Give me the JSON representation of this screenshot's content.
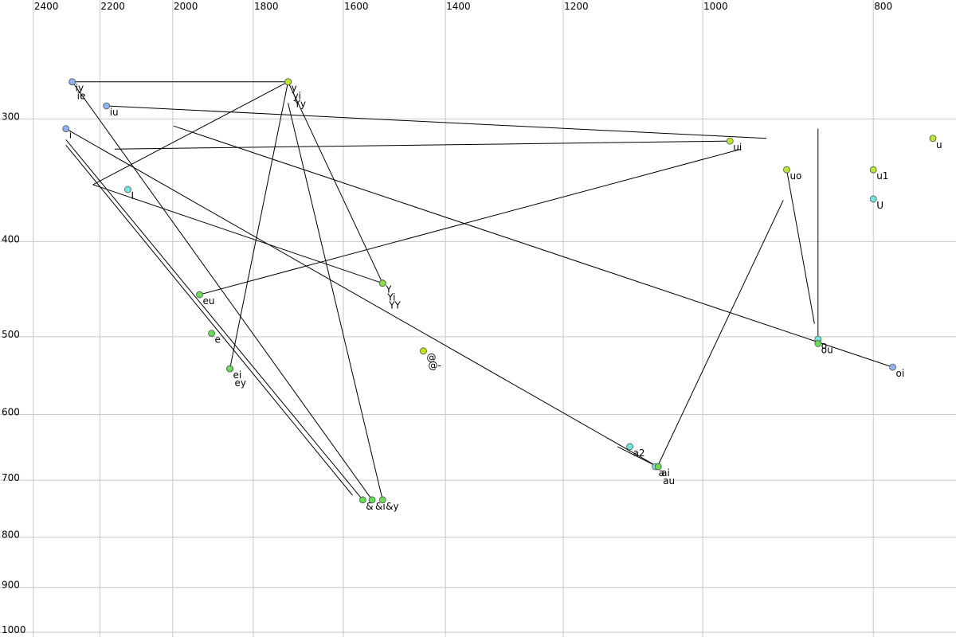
{
  "chart_data": {
    "type": "scatter",
    "xscale": "log",
    "yscale": "log",
    "grid": true,
    "xlim": [
      2507,
      718
    ],
    "ylim": [
      227,
      1011
    ],
    "xticks": [
      2400,
      2200,
      2000,
      1800,
      1600,
      1400,
      1200,
      1000,
      800
    ],
    "yticks": [
      300,
      400,
      500,
      600,
      700,
      800,
      900,
      1000
    ],
    "points": [
      {
        "label": "iy",
        "x": 2281,
        "y": 275,
        "color": "#8fb4f0"
      },
      {
        "label": "ie",
        "x": 2281,
        "y": 275,
        "color": "#8fb4f0"
      },
      {
        "label": "iu",
        "x": 2181,
        "y": 291,
        "color": "#8fb4f0"
      },
      {
        "label": "i",
        "x": 2300,
        "y": 307,
        "color": "#8fb4f0"
      },
      {
        "label": "I",
        "x": 2121,
        "y": 354,
        "color": "#6fe8e0"
      },
      {
        "label": "y",
        "x": 1720,
        "y": 275,
        "color": "#b8e632"
      },
      {
        "label": "yi",
        "x": 1720,
        "y": 275,
        "color": "#b8e632"
      },
      {
        "label": "Yy",
        "x": 1720,
        "y": 275,
        "color": "#b8e632"
      },
      {
        "label": "eu",
        "x": 1931,
        "y": 453,
        "color": "#66dd55"
      },
      {
        "label": "e",
        "x": 1901,
        "y": 496,
        "color": "#66dd55"
      },
      {
        "label": "ei",
        "x": 1856,
        "y": 539,
        "color": "#66dd55"
      },
      {
        "label": "ey",
        "x": 1856,
        "y": 539,
        "color": "#66dd55"
      },
      {
        "label": "Y",
        "x": 1520,
        "y": 441,
        "color": "#88e040"
      },
      {
        "label": "Yi",
        "x": 1520,
        "y": 441,
        "color": "#88e040"
      },
      {
        "label": "YY",
        "x": 1520,
        "y": 441,
        "color": "#88e040"
      },
      {
        "label": "@",
        "x": 1441,
        "y": 517,
        "color": "#c8e01e"
      },
      {
        "label": "@-",
        "x": 1441,
        "y": 517,
        "color": "#c8e01e"
      },
      {
        "label": "&",
        "x": 1560,
        "y": 733,
        "color": "#66dd55"
      },
      {
        "label": "&i",
        "x": 1541,
        "y": 733,
        "color": "#66dd55"
      },
      {
        "label": "&y",
        "x": 1520,
        "y": 733,
        "color": "#66dd55"
      },
      {
        "label": "ui",
        "x": 965,
        "y": 316,
        "color": "#b8e632"
      },
      {
        "label": "uo",
        "x": 896,
        "y": 338,
        "color": "#b8e632"
      },
      {
        "label": "u",
        "x": 740,
        "y": 314,
        "color": "#b8e632"
      },
      {
        "label": "u1",
        "x": 800,
        "y": 338,
        "color": "#b8e632"
      },
      {
        "label": "U",
        "x": 800,
        "y": 362,
        "color": "#6fe8e0"
      },
      {
        "label": "o",
        "x": 860,
        "y": 503,
        "color": "#6fe8e0"
      },
      {
        "label": "ou",
        "x": 860,
        "y": 508,
        "color": "#66dd55"
      },
      {
        "label": "oi",
        "x": 780,
        "y": 537,
        "color": "#8fb4f0"
      },
      {
        "label": "a2",
        "x": 1100,
        "y": 647,
        "color": "#6fe8e0"
      },
      {
        "label": "a",
        "x": 1064,
        "y": 678,
        "color": "#6fe8e0"
      },
      {
        "label": "ai",
        "x": 1060,
        "y": 678,
        "color": "#66dd55"
      },
      {
        "label": "au",
        "x": 1060,
        "y": 678,
        "color": "#66dd55"
      }
    ],
    "segments": [
      [
        2281,
        275,
        1720,
        275
      ],
      [
        1720,
        275,
        2220,
        350
      ],
      [
        2220,
        350,
        1520,
        441
      ],
      [
        2181,
        291,
        920,
        314
      ],
      [
        2158,
        322,
        965,
        316
      ],
      [
        2281,
        275,
        1541,
        733
      ],
      [
        2300,
        315,
        1560,
        733
      ],
      [
        2300,
        319,
        1581,
        725
      ],
      [
        2300,
        307,
        1061,
        678
      ],
      [
        1998,
        305,
        780,
        537
      ],
      [
        1720,
        275,
        1856,
        539
      ],
      [
        1720,
        289,
        1520,
        733
      ],
      [
        1720,
        275,
        1520,
        441
      ],
      [
        1931,
        453,
        951,
        322
      ],
      [
        1061,
        678,
        900,
        363
      ],
      [
        896,
        338,
        864,
        485
      ],
      [
        860,
        307,
        860,
        503
      ],
      [
        1118,
        647,
        1061,
        678
      ]
    ]
  }
}
